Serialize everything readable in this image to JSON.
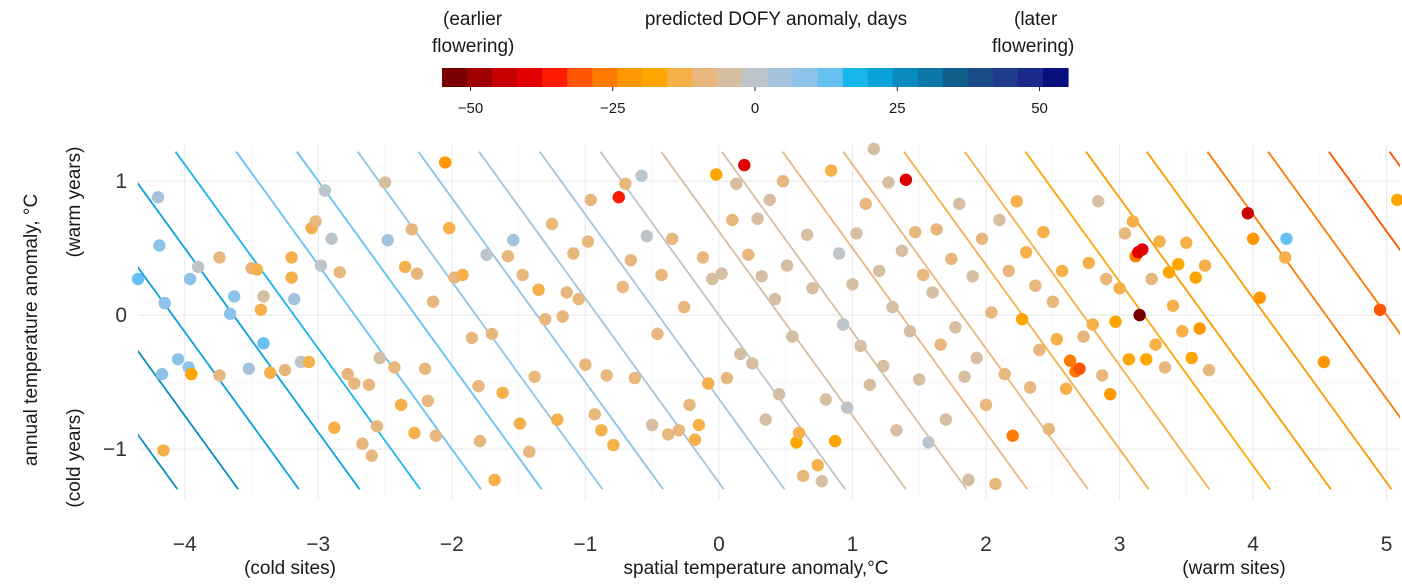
{
  "chart_data": {
    "type": "scatter",
    "xlabel": "spatial temperature anomaly,°C",
    "xlabel_left_note": "(cold sites)",
    "xlabel_right_note": "(warm sites)",
    "ylabel": "annual temperature anomaly, °C",
    "ylabel_low_note": "(cold years)",
    "ylabel_high_note": "(warm years)",
    "xlim": [
      -4.35,
      5.1
    ],
    "ylim": [
      -1.38,
      1.27
    ],
    "x_ticks": [
      "−4",
      "−3",
      "−2",
      "−1",
      "0",
      "1",
      "2",
      "3",
      "4",
      "5"
    ],
    "x_tick_values": [
      -4,
      -3,
      -2,
      -1,
      0,
      1,
      2,
      3,
      4,
      5
    ],
    "y_ticks": [
      "−1",
      "0",
      "1"
    ],
    "y_tick_values": [
      -1,
      0,
      1
    ],
    "grid": true,
    "background_contours": {
      "description_free": true,
      "slope_days_per_deg_spatial": -5.5,
      "slope_days_per_deg_annual": -4.0,
      "level_step_days": 2.5
    },
    "colorbar": {
      "title": "predicted DOFY anomaly, days",
      "left_note": [
        "(earlier",
        "flowering)"
      ],
      "right_note": [
        "(later",
        "flowering)"
      ],
      "range": [
        -55,
        55
      ],
      "tick_labels": [
        "−50",
        "−25",
        "0",
        "25",
        "50"
      ],
      "tick_values": [
        -50,
        -25,
        0,
        25,
        50
      ],
      "colors": [
        "#7a0000",
        "#a00000",
        "#c80000",
        "#e00000",
        "#ff1a00",
        "#ff5500",
        "#ff7a00",
        "#ff9800",
        "#ffa500",
        "#f5b04a",
        "#e8b77e",
        "#d6bea3",
        "#bcc4cc",
        "#a5c3dd",
        "#8dc3e8",
        "#66c1f0",
        "#19b6ec",
        "#0aa2db",
        "#0a8bbf",
        "#0b77a6",
        "#0f5f8a",
        "#1a4c8a",
        "#1f3c8c",
        "#1a2a8a",
        "#0a0f80"
      ],
      "legend_placement": "top"
    },
    "series": [
      {
        "points": [
          [
            -4.35,
            0.27,
            12
          ],
          [
            -4.2,
            0.88,
            6
          ],
          [
            -4.19,
            0.52,
            10
          ],
          [
            -4.15,
            0.09,
            9
          ],
          [
            -4.17,
            -0.44,
            9
          ],
          [
            -4.16,
            -1.01,
            -12
          ],
          [
            -4.05,
            -0.33,
            9
          ],
          [
            -3.97,
            -0.39,
            10
          ],
          [
            -3.95,
            -0.44,
            -16
          ],
          [
            -3.96,
            0.27,
            9
          ],
          [
            -3.9,
            0.36,
            2
          ],
          [
            -3.74,
            0.43,
            -9
          ],
          [
            -3.74,
            -0.45,
            -9
          ],
          [
            -3.66,
            0.01,
            7
          ],
          [
            -3.63,
            0.14,
            10
          ],
          [
            -3.52,
            -0.4,
            6
          ],
          [
            -3.5,
            0.35,
            -9
          ],
          [
            -3.46,
            0.34,
            -13
          ],
          [
            -3.43,
            0.04,
            -14
          ],
          [
            -3.41,
            0.14,
            -5
          ],
          [
            -3.41,
            -0.21,
            12
          ],
          [
            -3.36,
            -0.43,
            -14
          ],
          [
            -3.25,
            -0.41,
            -8
          ],
          [
            -3.2,
            0.43,
            -14
          ],
          [
            -3.2,
            0.28,
            -13
          ],
          [
            -3.18,
            0.12,
            4
          ],
          [
            -3.13,
            -0.35,
            -2
          ],
          [
            -3.07,
            -0.35,
            -13
          ],
          [
            -3.05,
            0.65,
            -13
          ],
          [
            -3.02,
            0.7,
            -11
          ],
          [
            -2.98,
            0.37,
            -1
          ],
          [
            -2.95,
            0.93,
            2
          ],
          [
            -2.9,
            0.57,
            -2
          ],
          [
            -2.88,
            -0.84,
            -12
          ],
          [
            -2.84,
            0.32,
            -8
          ],
          [
            -2.78,
            -0.44,
            -7
          ],
          [
            -2.73,
            -0.51,
            -8
          ],
          [
            -2.67,
            -0.96,
            -9
          ],
          [
            -2.6,
            -1.05,
            -9
          ],
          [
            -2.62,
            -0.52,
            -10
          ],
          [
            -2.56,
            -0.83,
            -7
          ],
          [
            -2.54,
            -0.32,
            -3
          ],
          [
            -2.5,
            0.99,
            -6
          ],
          [
            -2.48,
            0.56,
            4
          ],
          [
            -2.43,
            -0.39,
            -11
          ],
          [
            -2.38,
            -0.67,
            -12
          ],
          [
            -2.35,
            0.36,
            -14
          ],
          [
            -2.3,
            0.64,
            -11
          ],
          [
            -2.28,
            -0.88,
            -12
          ],
          [
            -2.26,
            0.31,
            -11
          ],
          [
            -2.2,
            -0.4,
            -10
          ],
          [
            -2.18,
            -0.64,
            -11
          ],
          [
            -2.14,
            0.1,
            -10
          ],
          [
            -2.12,
            -0.9,
            -11
          ],
          [
            -2.05,
            1.14,
            -20
          ],
          [
            -2.02,
            0.65,
            -13
          ],
          [
            -1.98,
            0.28,
            -8
          ],
          [
            -1.92,
            0.3,
            -12
          ],
          [
            -1.85,
            -0.17,
            -9
          ],
          [
            -1.8,
            -0.53,
            -7
          ],
          [
            -1.79,
            -0.94,
            -11
          ],
          [
            -1.74,
            0.45,
            -2
          ],
          [
            -1.7,
            -0.14,
            -11
          ],
          [
            -1.68,
            -1.23,
            -14
          ],
          [
            -1.62,
            -0.58,
            -13
          ],
          [
            -1.58,
            0.44,
            -10
          ],
          [
            -1.54,
            0.56,
            4
          ],
          [
            -1.49,
            -0.81,
            -12
          ],
          [
            -1.47,
            0.3,
            -10
          ],
          [
            -1.42,
            -1.02,
            -10
          ],
          [
            -1.38,
            -0.46,
            -11
          ],
          [
            -1.35,
            0.19,
            -13
          ],
          [
            -1.3,
            -0.03,
            -10
          ],
          [
            -1.25,
            0.68,
            -10
          ],
          [
            -1.21,
            -0.78,
            -13
          ],
          [
            -1.17,
            -0.01,
            -9
          ],
          [
            -1.14,
            0.17,
            -10
          ],
          [
            -1.09,
            0.46,
            -11
          ],
          [
            -1.05,
            0.12,
            -11
          ],
          [
            -1.0,
            -0.37,
            -10
          ],
          [
            -0.98,
            0.55,
            -10
          ],
          [
            -0.96,
            0.86,
            -10
          ],
          [
            -0.93,
            -0.74,
            -9
          ],
          [
            -0.88,
            -0.86,
            -12
          ],
          [
            -0.84,
            -0.45,
            -9
          ],
          [
            -0.79,
            -0.97,
            -12
          ],
          [
            -0.75,
            0.88,
            -36
          ],
          [
            -0.72,
            0.21,
            -7
          ],
          [
            -0.7,
            0.98,
            -9
          ],
          [
            -0.66,
            0.41,
            -8
          ],
          [
            -0.63,
            -0.47,
            -11
          ],
          [
            -0.58,
            1.04,
            -1
          ],
          [
            -0.54,
            0.59,
            -1
          ],
          [
            -0.5,
            -0.82,
            -6
          ],
          [
            -0.46,
            -0.14,
            -7
          ],
          [
            -0.43,
            0.3,
            -7
          ],
          [
            -0.38,
            -0.89,
            -7
          ],
          [
            -0.35,
            0.57,
            -8
          ],
          [
            -0.3,
            -0.86,
            -10
          ],
          [
            -0.26,
            0.06,
            -7
          ],
          [
            -0.22,
            -0.67,
            -9
          ],
          [
            -0.18,
            -0.93,
            -14
          ],
          [
            -0.15,
            -0.82,
            -12
          ],
          [
            -0.12,
            0.43,
            -8
          ],
          [
            -0.08,
            -0.51,
            -12
          ],
          [
            -0.05,
            0.27,
            -6
          ],
          [
            -0.02,
            1.05,
            -16
          ],
          [
            0.02,
            0.31,
            -3
          ],
          [
            0.06,
            -0.47,
            -8
          ],
          [
            0.1,
            0.71,
            -8
          ],
          [
            0.13,
            0.98,
            -5
          ],
          [
            0.16,
            -0.29,
            -5
          ],
          [
            0.19,
            1.12,
            -40
          ],
          [
            0.22,
            0.45,
            -7
          ],
          [
            0.25,
            -0.36,
            -6
          ],
          [
            0.29,
            0.72,
            -6
          ],
          [
            0.32,
            0.29,
            -6
          ],
          [
            0.35,
            -0.78,
            -6
          ],
          [
            0.38,
            0.86,
            -6
          ],
          [
            0.42,
            0.12,
            -3
          ],
          [
            0.45,
            -0.59,
            -4
          ],
          [
            0.48,
            1.0,
            -7
          ],
          [
            0.51,
            0.37,
            -4
          ],
          [
            0.55,
            -0.16,
            -3
          ],
          [
            0.58,
            -0.95,
            -16
          ],
          [
            0.6,
            -0.88,
            -14
          ],
          [
            0.63,
            -1.2,
            -8
          ],
          [
            0.66,
            0.6,
            -6
          ],
          [
            0.7,
            0.2,
            -4
          ],
          [
            0.74,
            -1.12,
            -14
          ],
          [
            0.77,
            -1.24,
            -5
          ],
          [
            0.8,
            -0.63,
            -5
          ],
          [
            0.84,
            1.08,
            -12
          ],
          [
            0.87,
            -0.94,
            -16
          ],
          [
            0.9,
            0.46,
            -2
          ],
          [
            0.93,
            -0.07,
            -2
          ],
          [
            0.96,
            -0.69,
            -1
          ],
          [
            1.0,
            0.23,
            -6
          ],
          [
            1.03,
            0.61,
            -5
          ],
          [
            1.06,
            -0.23,
            -4
          ],
          [
            1.1,
            0.83,
            -7
          ],
          [
            1.13,
            -0.52,
            -4
          ],
          [
            1.16,
            1.24,
            -4
          ],
          [
            1.2,
            0.33,
            -4
          ],
          [
            1.23,
            -0.38,
            -3
          ],
          [
            1.27,
            0.99,
            -6
          ],
          [
            1.3,
            0.06,
            -3
          ],
          [
            1.33,
            -0.86,
            -5
          ],
          [
            1.37,
            0.48,
            -4
          ],
          [
            1.4,
            1.01,
            -38
          ],
          [
            1.43,
            -0.12,
            -6
          ],
          [
            1.47,
            0.62,
            -8
          ],
          [
            1.5,
            -0.48,
            -6
          ],
          [
            1.53,
            0.3,
            -9
          ],
          [
            1.57,
            -0.95,
            -2
          ],
          [
            1.6,
            0.17,
            -5
          ],
          [
            1.63,
            0.64,
            -7
          ],
          [
            1.66,
            -0.22,
            -8
          ],
          [
            1.7,
            -0.78,
            -6
          ],
          [
            1.74,
            0.42,
            -7
          ],
          [
            1.77,
            -0.09,
            -6
          ],
          [
            1.8,
            0.83,
            -6
          ],
          [
            1.84,
            -0.46,
            -6
          ],
          [
            1.87,
            -1.23,
            -6
          ],
          [
            1.9,
            0.29,
            -5
          ],
          [
            1.93,
            -0.32,
            -5
          ],
          [
            1.97,
            0.57,
            -9
          ],
          [
            2.0,
            -0.67,
            -7
          ],
          [
            2.04,
            0.02,
            -11
          ],
          [
            2.07,
            -1.26,
            -7
          ],
          [
            2.1,
            0.71,
            -4
          ],
          [
            2.14,
            -0.44,
            -8
          ],
          [
            2.17,
            0.33,
            -8
          ],
          [
            2.2,
            -0.9,
            -25
          ],
          [
            2.23,
            0.85,
            -12
          ],
          [
            2.27,
            -0.03,
            -18
          ],
          [
            2.3,
            0.47,
            -14
          ],
          [
            2.33,
            -0.54,
            -11
          ],
          [
            2.37,
            0.22,
            -11
          ],
          [
            2.4,
            -0.26,
            -10
          ],
          [
            2.43,
            0.62,
            -13
          ],
          [
            2.47,
            -0.85,
            -7
          ],
          [
            2.5,
            0.1,
            -11
          ],
          [
            2.53,
            -0.18,
            -14
          ],
          [
            2.57,
            0.33,
            -15
          ],
          [
            2.6,
            -0.55,
            -14
          ],
          [
            2.63,
            -0.34,
            -25
          ],
          [
            2.67,
            -0.42,
            -28
          ],
          [
            2.7,
            -0.4,
            -30
          ],
          [
            2.73,
            -0.16,
            -10
          ],
          [
            2.77,
            0.39,
            -14
          ],
          [
            2.8,
            -0.07,
            -12
          ],
          [
            2.84,
            0.85,
            -4
          ],
          [
            2.87,
            -0.45,
            -10
          ],
          [
            2.9,
            0.27,
            -8
          ],
          [
            2.93,
            -0.59,
            -20
          ],
          [
            2.97,
            -0.05,
            -17
          ],
          [
            3.0,
            0.2,
            -12
          ],
          [
            3.04,
            0.61,
            -10
          ],
          [
            3.07,
            -0.33,
            -16
          ],
          [
            3.1,
            0.7,
            -13
          ],
          [
            3.12,
            0.44,
            -28
          ],
          [
            3.14,
            0.47,
            -38
          ],
          [
            3.15,
            0.0,
            -55
          ],
          [
            3.17,
            0.49,
            -40
          ],
          [
            3.2,
            -0.33,
            -18
          ],
          [
            3.24,
            0.27,
            -10
          ],
          [
            3.27,
            -0.22,
            -13
          ],
          [
            3.3,
            0.55,
            -14
          ],
          [
            3.34,
            -0.39,
            -8
          ],
          [
            3.37,
            0.32,
            -18
          ],
          [
            3.4,
            0.07,
            -12
          ],
          [
            3.44,
            0.38,
            -16
          ],
          [
            3.47,
            -0.12,
            -12
          ],
          [
            3.5,
            0.54,
            -15
          ],
          [
            3.54,
            -0.32,
            -17
          ],
          [
            3.57,
            0.28,
            -18
          ],
          [
            3.6,
            -0.1,
            -22
          ],
          [
            3.64,
            0.37,
            -15
          ],
          [
            3.67,
            -0.41,
            -10
          ],
          [
            3.96,
            0.76,
            -42
          ],
          [
            4.0,
            0.57,
            -20
          ],
          [
            4.05,
            0.13,
            -20
          ],
          [
            4.24,
            0.43,
            -15
          ],
          [
            4.25,
            0.57,
            14
          ],
          [
            4.53,
            -0.35,
            -22
          ],
          [
            4.95,
            0.04,
            -33
          ],
          [
            5.08,
            0.86,
            -17
          ]
        ]
      }
    ]
  }
}
